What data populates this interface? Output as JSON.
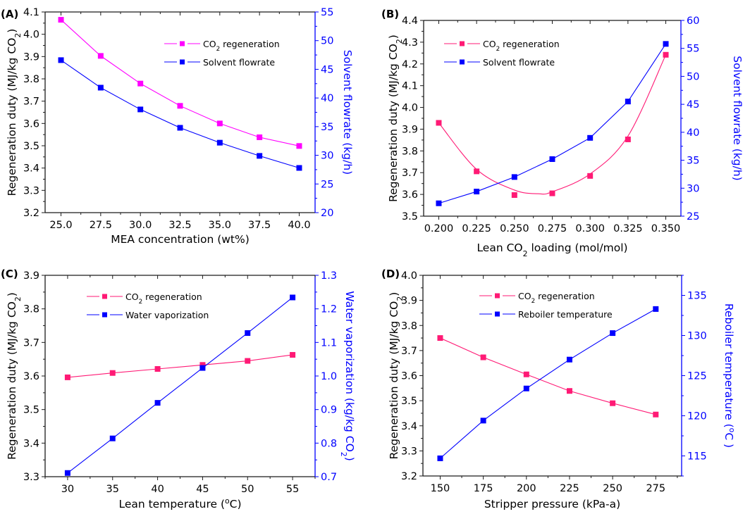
{
  "figure": {
    "colors": {
      "axis": "#1a1a1a",
      "right_axis": "#0000ff",
      "co2_magenta": "#ff00ff",
      "co2_pink": "#ff1a75",
      "blue_series": "#0000ff"
    }
  },
  "chart_data": [
    {
      "id": "A",
      "panel_label": "(A)",
      "type": "line",
      "xlabel": "MEA concentration (wt%)",
      "ylabel_left": {
        "main": "Regeneration duty (MJ/kg CO",
        "sub": "2",
        "tail": ")"
      },
      "ylabel_right": {
        "main": "Solvent flowrate (kg/h)",
        "sub": "",
        "tail": ""
      },
      "xlim": [
        24,
        41
      ],
      "x_ticks": [
        25.0,
        27.5,
        30.0,
        32.5,
        35.0,
        37.5,
        40.0
      ],
      "x_tick_labels": [
        "25.0",
        "27.5",
        "30.0",
        "32.5",
        "35.0",
        "37.5",
        "40.0"
      ],
      "ylim_left": [
        3.2,
        4.1
      ],
      "y_ticks_left": [
        3.2,
        3.3,
        3.4,
        3.5,
        3.6,
        3.7,
        3.8,
        3.9,
        4.0,
        4.1
      ],
      "y_tick_labels_left": [
        "3.2",
        "3.3",
        "3.4",
        "3.5",
        "3.6",
        "3.7",
        "3.8",
        "3.9",
        "4.0",
        "4.1"
      ],
      "ylim_right": [
        20,
        55
      ],
      "y_ticks_right": [
        20,
        25,
        30,
        35,
        40,
        45,
        50,
        55
      ],
      "y_tick_labels_right": [
        "20",
        "25",
        "30",
        "35",
        "40",
        "45",
        "50",
        "55"
      ],
      "legend_position": "top-right",
      "x": [
        25.0,
        27.5,
        30.0,
        32.5,
        35.0,
        37.5,
        40.0
      ],
      "series": [
        {
          "name": "CO2 regeneration",
          "legend_main": "CO",
          "legend_sub": "2",
          "legend_tail": " regeneration",
          "axis": "left",
          "color": "#ff00ff",
          "values": [
            4.065,
            3.903,
            3.779,
            3.679,
            3.6,
            3.538,
            3.499
          ]
        },
        {
          "name": "Solvent flowrate",
          "legend_main": "Solvent flowrate",
          "legend_sub": "",
          "legend_tail": "",
          "axis": "right",
          "color": "#0000ff",
          "values": [
            46.6,
            41.8,
            38.0,
            34.8,
            32.2,
            29.9,
            27.8
          ]
        }
      ]
    },
    {
      "id": "B",
      "panel_label": "(B)",
      "type": "line",
      "xlabel": {
        "main": "Lean CO",
        "sub": "2",
        "tail": " loading (mol/mol)"
      },
      "ylabel_left": {
        "main": "Regeneration duty  (MJ/kg CO",
        "sub": "2",
        "tail": ")"
      },
      "ylabel_right": {
        "main": "Solvent flowrate (kg/h)",
        "sub": "",
        "tail": ""
      },
      "xlim": [
        0.19,
        0.36
      ],
      "x_ticks": [
        0.2,
        0.225,
        0.25,
        0.275,
        0.3,
        0.325,
        0.35
      ],
      "x_tick_labels": [
        "0.200",
        "0.225",
        "0.250",
        "0.275",
        "0.300",
        "0.325",
        "0.350"
      ],
      "ylim_left": [
        3.5,
        4.4
      ],
      "y_ticks_left": [
        3.5,
        3.6,
        3.7,
        3.8,
        3.9,
        4.0,
        4.1,
        4.2,
        4.3,
        4.4
      ],
      "y_tick_labels_left": [
        "3.5",
        "3.6",
        "3.7",
        "3.8",
        "3.9",
        "4.0",
        "4.1",
        "4.2",
        "4.3",
        "4.4"
      ],
      "ylim_right": [
        25,
        60
      ],
      "y_ticks_right": [
        25,
        30,
        35,
        40,
        45,
        50,
        55,
        60
      ],
      "y_tick_labels_right": [
        "25",
        "30",
        "35",
        "40",
        "45",
        "50",
        "55",
        "60"
      ],
      "legend_position": "top-left",
      "x": [
        0.2,
        0.225,
        0.25,
        0.275,
        0.3,
        0.325,
        0.35
      ],
      "series": [
        {
          "name": "CO2 regeneration",
          "legend_main": "CO",
          "legend_sub": "2",
          "legend_tail": " regeneration",
          "axis": "left",
          "color": "#ff1a75",
          "values": [
            3.929,
            3.706,
            3.597,
            3.605,
            3.685,
            3.853,
            4.242
          ],
          "fit_curve": {
            "x": [
              0.2,
              0.225,
              0.25,
              0.266,
              0.275,
              0.3,
              0.325,
              0.35
            ],
            "y": [
              3.929,
              3.715,
              3.62,
              3.603,
              3.612,
              3.694,
              3.868,
              4.242
            ]
          }
        },
        {
          "name": "Solvent flowrate",
          "legend_main": "Solvent flowrate",
          "legend_sub": "",
          "legend_tail": "",
          "axis": "right",
          "color": "#0000ff",
          "values": [
            27.3,
            29.4,
            32.0,
            35.2,
            39.0,
            45.5,
            55.8
          ]
        }
      ]
    },
    {
      "id": "C",
      "panel_label": "(C)",
      "type": "line",
      "xlabel": {
        "main": "Lean temperature (",
        "sup": "o",
        "tail": "C)"
      },
      "ylabel_left": {
        "main": "Regeneration duty  (MJ/kg CO",
        "sub": "2",
        "tail": ")"
      },
      "ylabel_right": {
        "main": "Water vaporization  (kg/kg CO",
        "sub": "2",
        "tail": ")"
      },
      "xlim": [
        27.5,
        57.5
      ],
      "x_ticks": [
        30,
        35,
        40,
        45,
        50,
        55
      ],
      "x_tick_labels": [
        "30",
        "35",
        "40",
        "45",
        "50",
        "55"
      ],
      "ylim_left": [
        3.3,
        3.9
      ],
      "y_ticks_left": [
        3.3,
        3.4,
        3.5,
        3.6,
        3.7,
        3.8,
        3.9
      ],
      "y_tick_labels_left": [
        "3.3",
        "3.4",
        "3.5",
        "3.6",
        "3.7",
        "3.8",
        "3.9"
      ],
      "ylim_right": [
        0.7,
        1.3
      ],
      "y_ticks_right": [
        0.7,
        0.8,
        0.9,
        1.0,
        1.1,
        1.2,
        1.3
      ],
      "y_tick_labels_right": [
        "0.7",
        "0.8",
        "0.9",
        "1.0",
        "1.1",
        "1.2",
        "1.3"
      ],
      "legend_position": "top-left",
      "x": [
        30,
        35,
        40,
        45,
        50,
        55
      ],
      "series": [
        {
          "name": "CO2 regeneration",
          "legend_main": "CO",
          "legend_sub": "2",
          "legend_tail": " regeneration",
          "axis": "left",
          "color": "#ff1a75",
          "values": [
            3.596,
            3.609,
            3.621,
            3.633,
            3.645,
            3.663
          ]
        },
        {
          "name": "Water vaporization",
          "legend_main": "Water vaporization",
          "legend_sub": "",
          "legend_tail": "",
          "axis": "right",
          "color": "#0000ff",
          "values": [
            0.711,
            0.814,
            0.92,
            1.024,
            1.128,
            1.234
          ]
        }
      ]
    },
    {
      "id": "D",
      "panel_label": "(D)",
      "type": "line",
      "xlabel": "Stripper pressure (kPa-a)",
      "ylabel_left": {
        "main": "Regeneration duty (MJ/kg CO",
        "sub": "2",
        "tail": ")"
      },
      "ylabel_right": {
        "main": "Reboiler temperature (",
        "sup": "o",
        "tail": "C )"
      },
      "xlim": [
        140,
        290
      ],
      "x_ticks": [
        150,
        175,
        200,
        225,
        250,
        275
      ],
      "x_tick_labels": [
        "150",
        "175",
        "200",
        "225",
        "250",
        "275"
      ],
      "ylim_left": [
        3.2,
        4.0
      ],
      "y_ticks_left": [
        3.2,
        3.3,
        3.4,
        3.5,
        3.6,
        3.7,
        3.8,
        3.9,
        4.0
      ],
      "y_tick_labels_left": [
        "3.2",
        "3.3",
        "3.4",
        "3.5",
        "3.6",
        "3.7",
        "3.8",
        "3.9",
        "4.0"
      ],
      "ylim_right": [
        112.5,
        137.5
      ],
      "y_ticks_right": [
        115,
        120,
        125,
        130,
        135
      ],
      "y_tick_labels_right": [
        "115",
        "120",
        "125",
        "130",
        "135"
      ],
      "legend_position": "top-center",
      "x": [
        150,
        175,
        200,
        225,
        250,
        275
      ],
      "series": [
        {
          "name": "CO2 regeneration",
          "legend_main": "CO",
          "legend_sub": "2",
          "legend_tail": " regeneration",
          "axis": "left",
          "color": "#ff1a75",
          "values": [
            3.75,
            3.673,
            3.605,
            3.539,
            3.49,
            3.445
          ]
        },
        {
          "name": "Reboiler temperature",
          "legend_main": "Reboiler temperature",
          "legend_sub": "",
          "legend_tail": "",
          "axis": "right",
          "color": "#0000ff",
          "values": [
            114.7,
            119.4,
            123.4,
            127.0,
            130.3,
            133.3
          ]
        }
      ]
    }
  ]
}
